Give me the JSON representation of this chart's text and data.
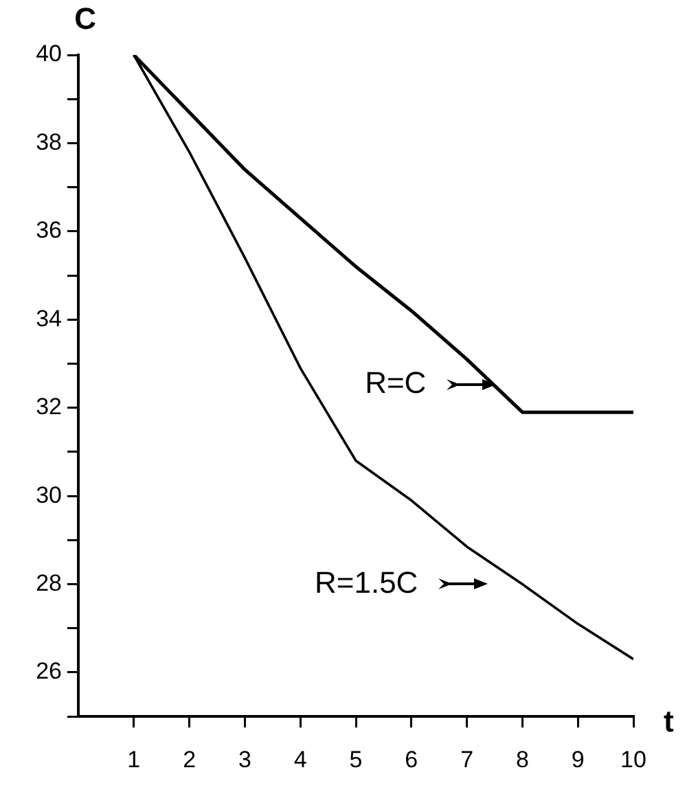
{
  "chart_data": {
    "type": "line",
    "xlabel": "t",
    "ylabel": "C",
    "x": [
      1,
      2,
      3,
      4,
      5,
      6,
      7,
      8,
      9,
      10
    ],
    "series": [
      {
        "name": "R=C",
        "color": "#000000",
        "values": [
          40,
          38.7,
          37.4,
          36.3,
          35.2,
          34.2,
          33.1,
          31.9,
          31.9,
          31.9
        ]
      },
      {
        "name": "R=1.5C",
        "color": "#000000",
        "values": [
          40,
          37.8,
          35.4,
          32.9,
          30.8,
          29.9,
          28.85,
          28.0,
          27.1,
          26.3
        ]
      }
    ],
    "xlim": [
      0,
      10
    ],
    "xticks": [
      1,
      2,
      3,
      4,
      5,
      6,
      7,
      8,
      9,
      10
    ],
    "ylim": [
      25,
      40
    ],
    "yticks": [
      {
        "value": 25,
        "label": null
      },
      26,
      {
        "value": 27,
        "label": null
      },
      28,
      {
        "value": 29,
        "label": null
      },
      30,
      {
        "value": 31,
        "label": null
      },
      32,
      {
        "value": 33,
        "label": null
      },
      34,
      {
        "value": 35,
        "label": null
      },
      36,
      {
        "value": 37,
        "label": null
      },
      38,
      {
        "value": 39,
        "label": null
      },
      40
    ],
    "grid": false,
    "legend": "right",
    "marker": "none",
    "line_style": "solid"
  }
}
